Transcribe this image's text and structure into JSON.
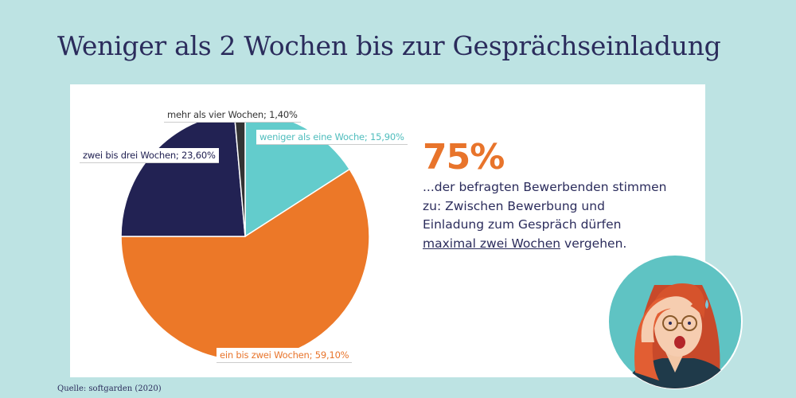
{
  "title": "Weniger als 2 Wochen bis zur Gesprächseinladung",
  "source": "Quelle: softgarden (2020)",
  "stat": {
    "value": "75%",
    "text_part1": "...der befragten Bewerbenden stimmen zu: Zwischen Bewerbung und Einladung zum Gespräch dürfen ",
    "text_underlined": "maximal zwei Wochen",
    "text_part2": " vergehen."
  },
  "colors": {
    "background": "#bde3e3",
    "title": "#2b2c5c",
    "accent": "#e8742b",
    "slice_teal": "#63cccc",
    "slice_orange": "#ec7828",
    "slice_navy": "#222253",
    "slice_gray": "#333333"
  },
  "chart_data": {
    "type": "pie",
    "title": "",
    "slices": [
      {
        "label": "weniger als eine Woche; 15,90%",
        "value": 15.9,
        "color": "#63cccc",
        "label_color": "#4fbdbd"
      },
      {
        "label": "ein bis zwei Wochen; 59,10%",
        "value": 59.1,
        "color": "#ec7828",
        "label_color": "#e8742b"
      },
      {
        "label": "zwei bis drei Wochen; 23,60%",
        "value": 23.6,
        "color": "#222253",
        "label_color": "#222253"
      },
      {
        "label": "mehr als vier Wochen; 1,40%",
        "value": 1.4,
        "color": "#333333",
        "label_color": "#333333"
      }
    ]
  },
  "illustration": {
    "icon": "surprised-woman-avatar-icon"
  }
}
